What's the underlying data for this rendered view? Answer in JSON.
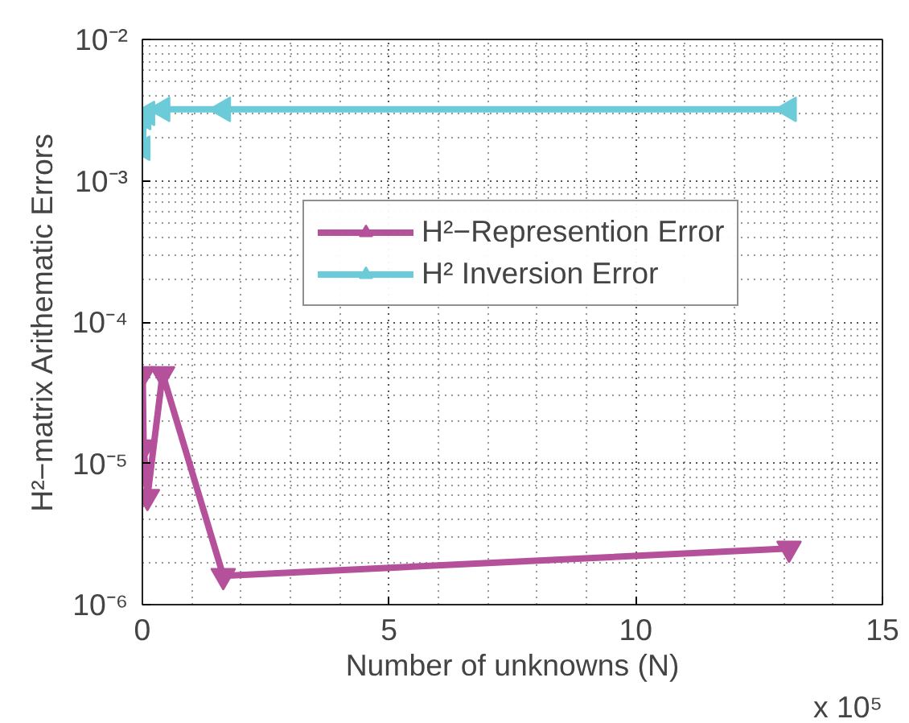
{
  "chart_data": {
    "type": "line",
    "xlabel": "Number of unknowns (N)",
    "ylabel": "H²−matrix Arithematic Errors",
    "log": "y",
    "xlim": [
      0,
      15
    ],
    "xticks": [
      0,
      5,
      10,
      15
    ],
    "ylim": [
      1e-06,
      0.01
    ],
    "yticks": [
      {
        "value": 1e-06,
        "label": "10⁻⁶"
      },
      {
        "value": 1e-05,
        "label": "10⁻⁵"
      },
      {
        "value": 0.0001,
        "label": "10⁻⁴"
      },
      {
        "value": 0.001,
        "label": "10⁻³"
      },
      {
        "value": 0.01,
        "label": "10⁻²"
      }
    ],
    "grid": true,
    "legend": "center",
    "marker": "triangle",
    "line_style": "solid",
    "annotations": [
      "x 10⁵"
    ],
    "x": [
      0.0064,
      0.0256,
      0.1024,
      0.4096,
      1.6384,
      13.1072
    ],
    "series": [
      {
        "name": "H²−Represention Error",
        "color": "#b5509b",
        "values": [
          4.3e-05,
          1.3e-05,
          5.8e-06,
          4.3e-05,
          1.6e-06,
          2.5e-06
        ]
      },
      {
        "name": "H² Inversion Error",
        "color": "#6ccbd9",
        "values": [
          0.0017,
          0.0028,
          0.003,
          0.0032,
          0.0032,
          0.0032
        ]
      }
    ]
  }
}
